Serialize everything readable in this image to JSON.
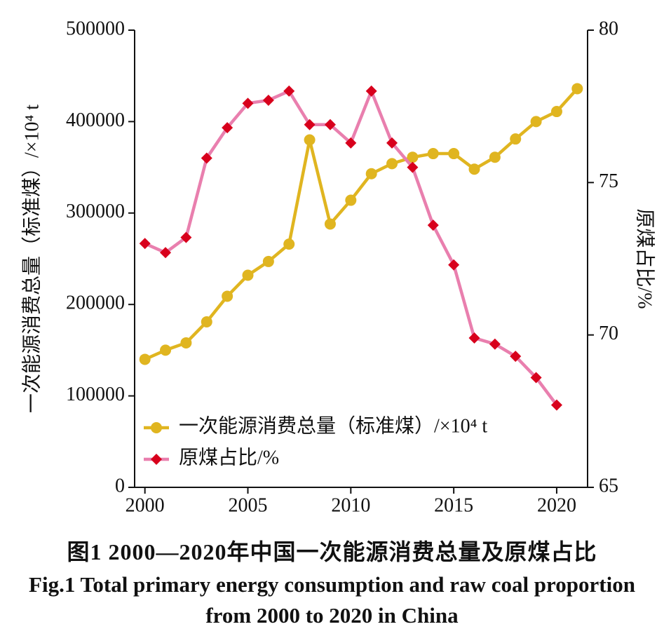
{
  "chart_data": {
    "type": "line",
    "y_label": "一次能源消费总量（标准煤）/×10⁴ t",
    "y2_label": "原煤占比/%",
    "caption_cn": "图1  2000—2020年中国一次能源消费总量及原煤占比",
    "caption_en": "Fig.1  Total primary energy consumption and raw coal proportion from 2000 to 2020 in China",
    "xlim": [
      1999.5,
      2021.5
    ],
    "xticks": [
      2000,
      2005,
      2010,
      2015,
      2020
    ],
    "ylim": [
      0,
      500000
    ],
    "yticks": [
      0,
      100000,
      200000,
      300000,
      400000,
      500000
    ],
    "y2lim": [
      65,
      80
    ],
    "y2ticks": [
      65,
      70,
      75,
      80
    ],
    "legend": "lower left",
    "series": [
      {
        "name": "一次能源消费总量（标准煤）/×10⁴ t",
        "color": "#e0b520",
        "marker": "circle",
        "marker_color": "#e0b520",
        "x": [
          2000,
          2001,
          2002,
          2003,
          2004,
          2005,
          2006,
          2007,
          2008,
          2009,
          2010,
          2011,
          2012,
          2013,
          2014,
          2015,
          2016,
          2017,
          2018,
          2019,
          2020,
          2021
        ],
        "values": [
          140000,
          150000,
          158000,
          181000,
          209000,
          232000,
          247000,
          266000,
          380000,
          288000,
          314000,
          343000,
          354000,
          361000,
          365000,
          365000,
          348000,
          361000,
          381000,
          400000,
          411000,
          436000
        ]
      },
      {
        "name": "原煤占比/%",
        "color": "#e97fae",
        "marker": "diamond",
        "marker_color": "#d8001c",
        "axis": "y2",
        "x": [
          2000,
          2001,
          2002,
          2003,
          2004,
          2005,
          2006,
          2007,
          2008,
          2009,
          2010,
          2011,
          2012,
          2013,
          2014,
          2015,
          2016,
          2017,
          2018,
          2019,
          2020
        ],
        "values": [
          73.0,
          72.7,
          73.2,
          75.8,
          76.8,
          77.6,
          77.7,
          78.0,
          76.9,
          76.9,
          76.3,
          78.0,
          76.3,
          75.5,
          73.6,
          72.3,
          69.9,
          69.7,
          69.3,
          68.6,
          67.7
        ]
      }
    ]
  }
}
